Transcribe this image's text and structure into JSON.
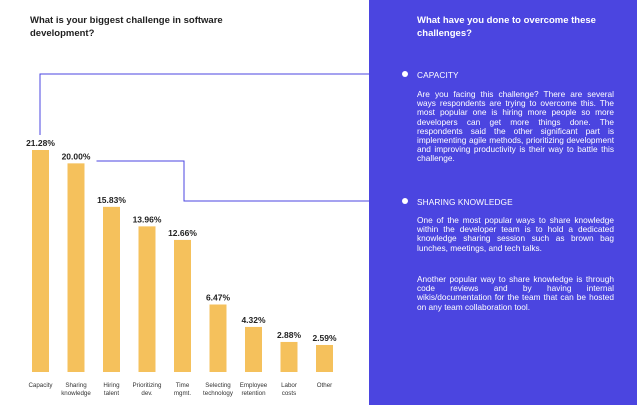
{
  "left_question": "What is your biggest challenge in software development?",
  "right_question": "What have you done to overcome these challenges?",
  "colors": {
    "bar": "#f5c15c",
    "panel": "#4b45e0",
    "connector": "#4b45e0"
  },
  "chart_data": {
    "type": "bar",
    "categories": [
      [
        "Capacity"
      ],
      [
        "Sharing",
        "knowledge"
      ],
      [
        "Hiring",
        "talent"
      ],
      [
        "Prioritizing",
        "dev."
      ],
      [
        "Time",
        "mgmt."
      ],
      [
        "Selecting",
        "technology"
      ],
      [
        "Employee",
        "retention"
      ],
      [
        "Labor",
        "costs"
      ],
      [
        "Other"
      ]
    ],
    "values": [
      21.28,
      20.0,
      15.83,
      13.96,
      12.66,
      6.47,
      4.32,
      2.88,
      2.59
    ],
    "data_labels": [
      "21.28%",
      "20.00%",
      "15.83%",
      "13.96%",
      "12.66%",
      "6.47%",
      "4.32%",
      "2.88%",
      "2.59%"
    ],
    "title": "",
    "xlabel": "",
    "ylabel": "",
    "ylim": [
      0,
      21.28
    ],
    "grid": false,
    "legend": "none"
  },
  "sections": [
    {
      "title": "CAPACITY",
      "body": "Are you facing this challenge? There are several ways respondents are trying to overcome this. The most popular one is hiring more people so more developers can get more things done. The respondents said the other significant part is implementing agile methods, prioritizing development and improving productivity is their way to battle this challenge."
    },
    {
      "title": "SHARING KNOWLEDGE",
      "body": "One of the most popular ways to share knowledge within the developer team is to hold a dedicated knowledge sharing session such as brown bag lunches, meetings, and tech talks.",
      "body2": "Another popular way to share knowledge is through code reviews and by having internal wikis/documentation for the team that can be hosted on any team collaboration tool."
    }
  ]
}
